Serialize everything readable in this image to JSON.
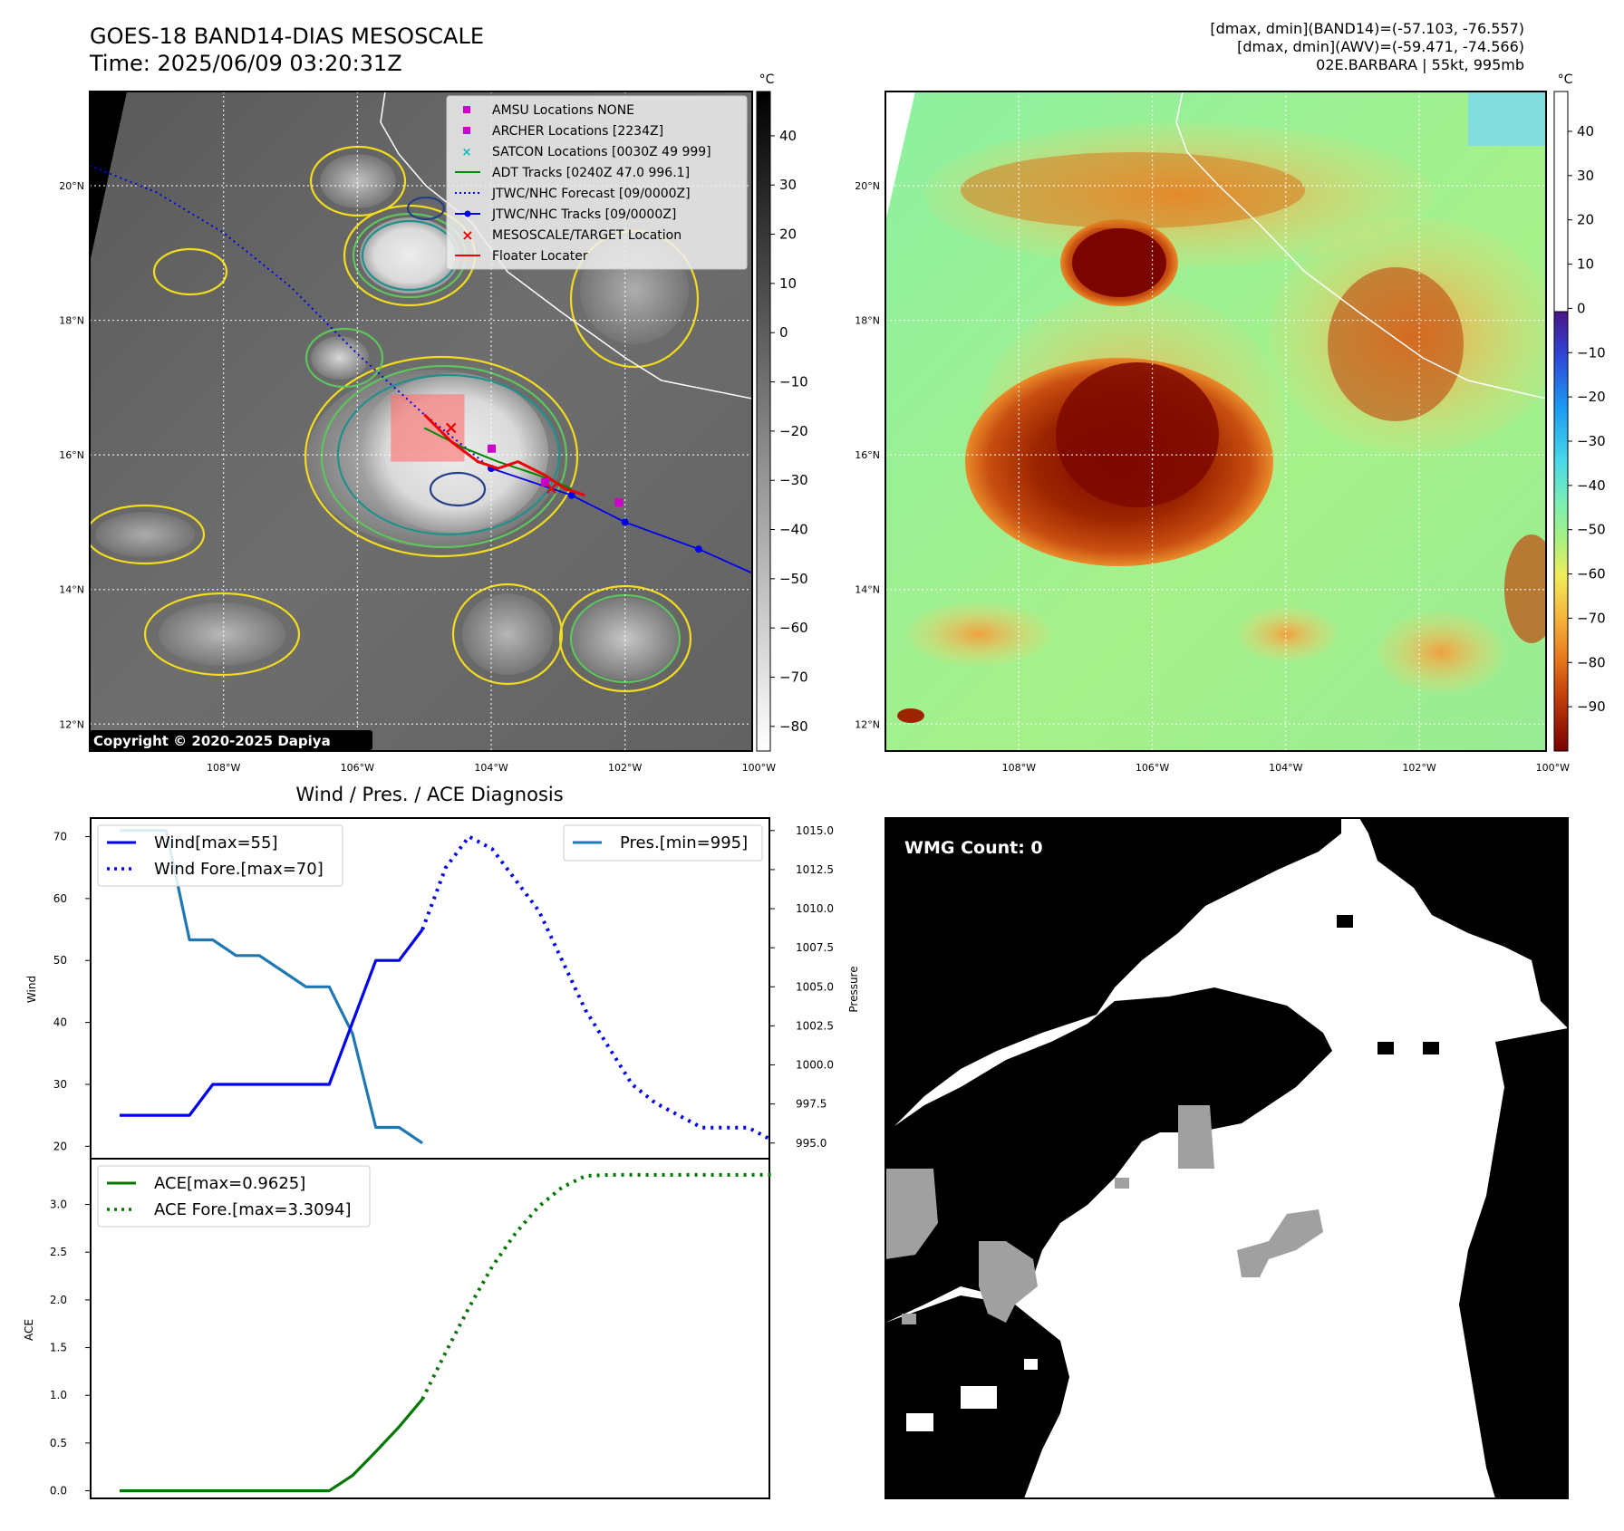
{
  "header": {
    "title_line1": "GOES-18 BAND14-DIAS MESOSCALE",
    "title_line2": "Time: 2025/06/09 03:20:31Z",
    "info_line1": "[dmax, dmin](BAND14)=(-57.103, -76.557)",
    "info_line2": "[dmax, dmin](AWV)=(-59.471, -74.566)",
    "info_line3": "02E.BARBARA | 55kt, 995mb"
  },
  "map_axes": {
    "lat_labels": [
      "20°N",
      "18°N",
      "16°N",
      "14°N",
      "12°N"
    ],
    "lon_labels": [
      "108°W",
      "106°W",
      "104°W",
      "102°W",
      "100°W"
    ],
    "lats": [
      20,
      18,
      16,
      14,
      12
    ],
    "lons": [
      -108,
      -106,
      -104,
      -102,
      -100
    ],
    "lat_range": [
      11.6,
      21.4
    ],
    "lon_range": [
      -110.0,
      -100.1
    ]
  },
  "ir_colorbar": {
    "unit": "°C",
    "ticks": [
      "40",
      "30",
      "20",
      "10",
      "0",
      "−10",
      "−20",
      "−30",
      "−40",
      "−50",
      "−60",
      "−70",
      "−80"
    ],
    "tick_values": [
      40,
      30,
      20,
      10,
      0,
      -10,
      -20,
      -30,
      -40,
      -50,
      -60,
      -70,
      -80
    ],
    "range": [
      -85,
      49
    ]
  },
  "awv_colorbar": {
    "unit": "°C",
    "ticks": [
      "40",
      "30",
      "20",
      "10",
      "0",
      "−10",
      "−20",
      "−30",
      "−40",
      "−50",
      "−60",
      "−70",
      "−80",
      "−90"
    ],
    "tick_values": [
      40,
      30,
      20,
      10,
      0,
      -10,
      -20,
      -30,
      -40,
      -50,
      -60,
      -70,
      -80,
      -90
    ],
    "range": [
      -100,
      49
    ]
  },
  "legend": {
    "amsu": "AMSU Locations NONE",
    "archer": "ARCHER Locations [2234Z]",
    "satcon": "SATCON Locations [0030Z 49 999]",
    "adt": "ADT Tracks [0240Z 47.0 996.1]",
    "forecast": "JTWC/NHC Forecast [09/0000Z]",
    "tracks": "JTWC/NHC Tracks [09/0000Z]",
    "target": "MESOSCALE/TARGET Location",
    "floater": "Floater Locater"
  },
  "copyright": "Copyright © 2020-2025 Dapiya",
  "colors": {
    "wind": "#0000ee",
    "pressure": "#1f77b4",
    "ace": "#007700",
    "contour_yellow": "#f2dc1e",
    "contour_green": "#5ec45e",
    "contour_teal": "#20908c",
    "contour_navy": "#263f86"
  },
  "chart_data": [
    {
      "type": "line",
      "title": "Wind / Pres. / ACE Diagnosis",
      "ylabel": "Wind",
      "y2label": "Pressure",
      "ylim": [
        18,
        73
      ],
      "y_ticks": [
        20,
        30,
        40,
        50,
        60,
        70
      ],
      "y2lim": [
        994.0,
        1015.8
      ],
      "y2_ticks": [
        995.0,
        997.5,
        1000.0,
        1002.5,
        1005.0,
        1007.5,
        1010.0,
        1012.5,
        1015.0
      ],
      "y2_tick_labels": [
        "995.0",
        "997.5",
        "1000.0",
        "1002.5",
        "1005.0",
        "1007.5",
        "1010.0",
        "1012.5",
        "1015.0"
      ],
      "series": [
        {
          "name": "Wind[max=55]",
          "style": "solid",
          "x": [
            0,
            1,
            2,
            3,
            4,
            5,
            6,
            7,
            8,
            9,
            10,
            11,
            12,
            13
          ],
          "values": [
            25,
            25,
            25,
            25,
            30,
            30,
            30,
            30,
            30,
            30,
            40,
            50,
            50,
            55
          ]
        },
        {
          "name": "Wind Fore.[max=70]",
          "style": "dotted",
          "x": [
            13,
            14,
            15,
            16,
            17,
            18,
            19,
            20,
            21,
            22,
            23,
            24,
            25,
            26,
            27,
            28
          ],
          "values": [
            55,
            65,
            70,
            68,
            63,
            58,
            50,
            42,
            36,
            30,
            27,
            25,
            23,
            23,
            23,
            21
          ]
        },
        {
          "name": "Pres.[min=995]",
          "axis": "right",
          "style": "solid",
          "x": [
            0,
            1,
            2,
            3,
            4,
            5,
            6,
            7,
            8,
            9,
            10,
            11,
            12,
            13
          ],
          "values": [
            1015,
            1015,
            1015,
            1008,
            1008,
            1007,
            1007,
            1006,
            1005,
            1005,
            1002,
            996,
            996,
            995
          ]
        }
      ]
    },
    {
      "type": "line",
      "ylabel": "ACE",
      "ylim": [
        -0.08,
        3.48
      ],
      "y_ticks": [
        0.0,
        0.5,
        1.0,
        1.5,
        2.0,
        2.5,
        3.0
      ],
      "y_tick_labels": [
        "0.0",
        "0.5",
        "1.0",
        "1.5",
        "2.0",
        "2.5",
        "3.0"
      ],
      "series": [
        {
          "name": "ACE[max=0.9625]",
          "style": "solid",
          "x": [
            0,
            1,
            2,
            3,
            4,
            5,
            6,
            7,
            8,
            9,
            10,
            11,
            12,
            13
          ],
          "values": [
            0,
            0,
            0,
            0,
            0,
            0,
            0,
            0,
            0,
            0,
            0.16,
            0.41,
            0.67,
            0.96
          ]
        },
        {
          "name": "ACE Fore.[max=3.3094]",
          "style": "dotted",
          "x": [
            13,
            14,
            15,
            16,
            17,
            18,
            19,
            20,
            21,
            22,
            23,
            24,
            25,
            26,
            27,
            28
          ],
          "values": [
            0.96,
            1.45,
            1.92,
            2.35,
            2.7,
            2.98,
            3.18,
            3.3,
            3.31,
            3.31,
            3.31,
            3.31,
            3.31,
            3.31,
            3.31,
            3.31
          ]
        }
      ]
    }
  ],
  "track": {
    "best": [
      [
        -104.0,
        15.8
      ],
      [
        -102.8,
        15.4
      ],
      [
        -102.0,
        15.0
      ],
      [
        -100.9,
        14.6
      ],
      [
        -100.0,
        14.2
      ]
    ],
    "forecast": [
      [
        -110.0,
        20.3
      ],
      [
        -109.0,
        19.9
      ],
      [
        -108.0,
        19.3
      ],
      [
        -107.0,
        18.5
      ],
      [
        -106.0,
        17.5
      ],
      [
        -105.0,
        16.6
      ],
      [
        -104.0,
        15.8
      ]
    ],
    "adt": [
      [
        -105.0,
        16.4
      ],
      [
        -104.4,
        16.1
      ],
      [
        -103.9,
        15.9
      ],
      [
        -103.3,
        15.7
      ],
      [
        -102.8,
        15.5
      ]
    ],
    "floater": [
      [
        -105.0,
        16.6
      ],
      [
        -104.6,
        16.2
      ],
      [
        -104.2,
        15.9
      ],
      [
        -103.9,
        15.8
      ],
      [
        -103.6,
        15.9
      ],
      [
        -103.2,
        15.7
      ],
      [
        -102.9,
        15.5
      ],
      [
        -102.6,
        15.4
      ]
    ],
    "target": [
      [
        -104.6,
        16.4
      ],
      [
        -103.1,
        15.5
      ]
    ],
    "archer": [
      [
        -104.0,
        16.1
      ],
      [
        -103.2,
        15.6
      ],
      [
        -102.1,
        15.3
      ]
    ],
    "floater_box": {
      "lon": [
        -105.5,
        -104.4
      ],
      "lat": [
        15.9,
        16.9
      ]
    }
  },
  "wmg": {
    "label": "WMG Count: 0"
  }
}
